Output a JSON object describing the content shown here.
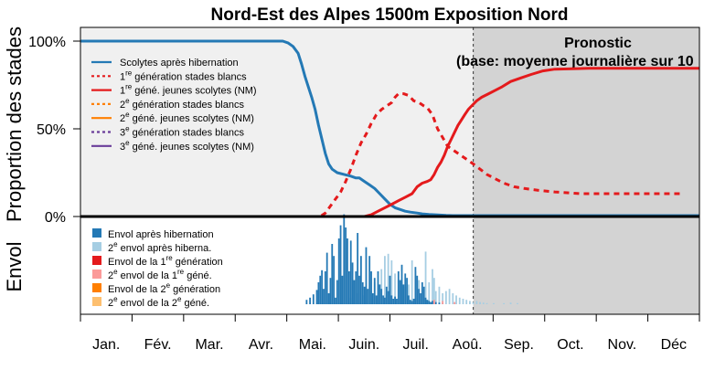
{
  "chart_data": {
    "type": "line",
    "title": "Nord-Est des Alpes 1500m Exposition Nord",
    "ylabel": "Proportion des stades",
    "ylabel_lower": "Envol",
    "yticks": [
      "100%",
      "50%",
      "0%"
    ],
    "ylim": [
      0,
      100
    ],
    "months": [
      "Jan.",
      "Fév.",
      "Mar.",
      "Avr.",
      "Mai.",
      "Juin.",
      "Juil.",
      "Aoû.",
      "Sep.",
      "Oct.",
      "Nov.",
      "Déc"
    ],
    "x_unit": "day of year",
    "xlim": [
      1,
      365
    ],
    "forecast": {
      "start_day": 232,
      "label_line1": "Pronostic",
      "label_line2": "(base: moyenne journalière sur 10"
    },
    "series": [
      {
        "name": "Scolytes après hibernation",
        "sup": "",
        "prefix": "",
        "suffix": "",
        "color": "#2479b5",
        "dash": "solid",
        "points": [
          [
            1,
            100
          ],
          [
            120,
            100
          ],
          [
            123,
            99
          ],
          [
            126,
            97
          ],
          [
            129,
            93
          ],
          [
            131,
            87
          ],
          [
            133,
            80
          ],
          [
            135,
            74
          ],
          [
            137,
            68
          ],
          [
            139,
            61
          ],
          [
            141,
            52
          ],
          [
            143,
            44
          ],
          [
            145,
            36
          ],
          [
            147,
            30
          ],
          [
            149,
            27
          ],
          [
            152,
            25
          ],
          [
            156,
            24
          ],
          [
            160,
            23
          ],
          [
            163,
            22
          ],
          [
            165,
            22
          ],
          [
            168,
            20
          ],
          [
            171,
            18
          ],
          [
            174,
            16
          ],
          [
            177,
            13
          ],
          [
            180,
            10
          ],
          [
            183,
            7
          ],
          [
            186,
            5
          ],
          [
            189,
            4
          ],
          [
            192,
            3
          ],
          [
            195,
            2.5
          ],
          [
            199,
            2
          ],
          [
            202,
            1.5
          ],
          [
            206,
            1.2
          ],
          [
            210,
            1
          ],
          [
            216,
            0.6
          ],
          [
            220,
            0.5
          ],
          [
            232,
            0.5
          ],
          [
            365,
            0.5
          ]
        ]
      },
      {
        "name": "génération stades blancs",
        "sup": "re",
        "prefix": "1",
        "suffix": "",
        "color": "#e41a1c",
        "dash": "dashed",
        "points": [
          [
            1,
            0
          ],
          [
            142,
            0
          ],
          [
            145,
            2
          ],
          [
            148,
            6
          ],
          [
            151,
            10
          ],
          [
            154,
            14
          ],
          [
            157,
            20
          ],
          [
            160,
            27
          ],
          [
            163,
            35
          ],
          [
            166,
            42
          ],
          [
            169,
            47
          ],
          [
            172,
            53
          ],
          [
            175,
            58
          ],
          [
            178,
            61
          ],
          [
            181,
            63
          ],
          [
            184,
            65
          ],
          [
            186,
            68
          ],
          [
            188,
            70
          ],
          [
            191,
            70
          ],
          [
            194,
            69
          ],
          [
            197,
            66
          ],
          [
            200,
            65
          ],
          [
            203,
            63
          ],
          [
            205,
            62
          ],
          [
            208,
            58
          ],
          [
            211,
            50
          ],
          [
            214,
            45
          ],
          [
            217,
            40
          ],
          [
            220,
            38
          ],
          [
            223,
            36
          ],
          [
            226,
            34
          ],
          [
            229,
            32
          ],
          [
            232,
            30
          ],
          [
            236,
            27
          ],
          [
            240,
            24
          ],
          [
            244,
            22
          ],
          [
            250,
            19
          ],
          [
            256,
            17
          ],
          [
            262,
            16
          ],
          [
            270,
            15
          ],
          [
            280,
            14
          ],
          [
            295,
            13
          ],
          [
            320,
            13
          ],
          [
            340,
            13
          ],
          [
            355,
            13
          ]
        ]
      },
      {
        "name": "géné. jeunes scolytes (NM)",
        "sup": "re",
        "prefix": "1",
        "suffix": "",
        "color": "#e41a1c",
        "dash": "solid",
        "points": [
          [
            1,
            0
          ],
          [
            168,
            0
          ],
          [
            172,
            1
          ],
          [
            176,
            3
          ],
          [
            180,
            5
          ],
          [
            184,
            7
          ],
          [
            188,
            9
          ],
          [
            192,
            11
          ],
          [
            196,
            13
          ],
          [
            199,
            17
          ],
          [
            202,
            19
          ],
          [
            205,
            20
          ],
          [
            207,
            21
          ],
          [
            209,
            24
          ],
          [
            211,
            28
          ],
          [
            213,
            31
          ],
          [
            215,
            35
          ],
          [
            217,
            40
          ],
          [
            219,
            44
          ],
          [
            221,
            48
          ],
          [
            223,
            52
          ],
          [
            225,
            55
          ],
          [
            227,
            58
          ],
          [
            229,
            61
          ],
          [
            231,
            63
          ],
          [
            234,
            66
          ],
          [
            237,
            68
          ],
          [
            241,
            70
          ],
          [
            245,
            72
          ],
          [
            249,
            74
          ],
          [
            254,
            77
          ],
          [
            260,
            79
          ],
          [
            266,
            81
          ],
          [
            273,
            83
          ],
          [
            280,
            84
          ],
          [
            300,
            84.5
          ],
          [
            340,
            84.5
          ],
          [
            365,
            84.5
          ]
        ]
      },
      {
        "name": "génération stades blancs",
        "sup": "e",
        "prefix": "2",
        "suffix": "",
        "color": "#ff7f00",
        "dash": "dashed",
        "points": [
          [
            1,
            0
          ],
          [
            365,
            0
          ]
        ]
      },
      {
        "name": "géné. jeunes scolytes (NM)",
        "sup": "e",
        "prefix": "2",
        "suffix": "",
        "color": "#ff7f00",
        "dash": "solid",
        "points": [
          [
            1,
            0
          ],
          [
            365,
            0
          ]
        ]
      },
      {
        "name": "génération stades blancs",
        "sup": "e",
        "prefix": "3",
        "suffix": "",
        "color": "#6a3d9a",
        "dash": "dashed",
        "points": [
          [
            1,
            0
          ],
          [
            365,
            0
          ]
        ]
      },
      {
        "name": "géné. jeunes scolytes (NM)",
        "sup": "e",
        "prefix": "3",
        "suffix": "",
        "color": "#6a3d9a",
        "dash": "solid",
        "points": [
          [
            1,
            0
          ],
          [
            365,
            0
          ]
        ]
      }
    ],
    "flight_legend": [
      {
        "prefix": "",
        "sup": "",
        "name": "Envol après hibernation",
        "color": "#2479b5"
      },
      {
        "prefix": "2",
        "sup": "e",
        "name": "envol après hiberna.",
        "color": "#a6cee3"
      },
      {
        "prefix": "",
        "sup": "re",
        "name": "Envol de la 1",
        "name_after": "génération",
        "color": "#e41a1c"
      },
      {
        "prefix": "2",
        "sup": "e",
        "name": "envol de la 1",
        "sup2": "re",
        "name_after": "géné.",
        "color": "#fb9a99"
      },
      {
        "prefix": "",
        "sup": "e",
        "name": "Envol de la 2",
        "name_after": "génération",
        "color": "#ff7f00"
      },
      {
        "prefix": "2",
        "sup": "e",
        "name": "envol de la 2",
        "sup2": "e",
        "name_after": "géné.",
        "color": "#fdbf6f"
      }
    ],
    "flight_blue": [
      [
        134,
        4
      ],
      [
        136,
        6
      ],
      [
        138,
        9
      ],
      [
        140,
        13
      ],
      [
        141,
        20
      ],
      [
        142,
        26
      ],
      [
        143,
        31
      ],
      [
        144,
        14
      ],
      [
        145,
        30
      ],
      [
        146,
        47
      ],
      [
        147,
        10
      ],
      [
        148,
        24
      ],
      [
        149,
        55
      ],
      [
        150,
        44
      ],
      [
        151,
        6
      ],
      [
        152,
        22
      ],
      [
        153,
        60
      ],
      [
        154,
        72
      ],
      [
        155,
        26
      ],
      [
        156,
        82
      ],
      [
        157,
        70
      ],
      [
        158,
        60
      ],
      [
        159,
        30
      ],
      [
        160,
        58
      ],
      [
        161,
        38
      ],
      [
        162,
        22
      ],
      [
        163,
        30
      ],
      [
        164,
        65
      ],
      [
        165,
        26
      ],
      [
        166,
        44
      ],
      [
        167,
        20
      ],
      [
        168,
        16
      ],
      [
        169,
        52
      ],
      [
        170,
        14
      ],
      [
        171,
        44
      ],
      [
        172,
        30
      ],
      [
        173,
        10
      ],
      [
        174,
        24
      ],
      [
        175,
        8
      ],
      [
        176,
        30
      ],
      [
        177,
        18
      ],
      [
        178,
        14
      ],
      [
        179,
        8
      ],
      [
        180,
        6
      ],
      [
        181,
        16
      ],
      [
        182,
        12
      ],
      [
        183,
        26
      ],
      [
        184,
        8
      ],
      [
        185,
        5
      ],
      [
        186,
        7
      ],
      [
        187,
        5
      ],
      [
        188,
        30
      ],
      [
        189,
        22
      ],
      [
        190,
        36
      ],
      [
        191,
        18
      ],
      [
        192,
        28
      ],
      [
        193,
        24
      ],
      [
        194,
        8
      ],
      [
        195,
        4
      ],
      [
        196,
        3
      ],
      [
        197,
        5
      ],
      [
        198,
        34
      ],
      [
        199,
        26
      ],
      [
        200,
        14
      ],
      [
        201,
        10
      ],
      [
        202,
        20
      ],
      [
        203,
        16
      ],
      [
        204,
        6
      ],
      [
        205,
        4
      ],
      [
        206,
        3
      ],
      [
        207,
        2
      ],
      [
        208,
        3
      ],
      [
        210,
        2
      ],
      [
        212,
        1.5
      ],
      [
        214,
        1
      ]
    ],
    "flight_lightblue": [
      [
        160,
        6
      ],
      [
        164,
        10
      ],
      [
        168,
        8
      ],
      [
        172,
        12
      ],
      [
        174,
        20
      ],
      [
        178,
        32
      ],
      [
        180,
        44
      ],
      [
        182,
        46
      ],
      [
        184,
        40
      ],
      [
        186,
        28
      ],
      [
        188,
        22
      ],
      [
        190,
        20
      ],
      [
        192,
        16
      ],
      [
        194,
        18
      ],
      [
        196,
        40
      ],
      [
        198,
        30
      ],
      [
        200,
        22
      ],
      [
        202,
        14
      ],
      [
        204,
        48
      ],
      [
        206,
        20
      ],
      [
        208,
        32
      ],
      [
        209,
        24
      ],
      [
        210,
        12
      ],
      [
        212,
        16
      ],
      [
        214,
        10
      ],
      [
        216,
        12
      ],
      [
        218,
        14
      ],
      [
        220,
        10
      ],
      [
        222,
        8
      ],
      [
        224,
        6
      ],
      [
        226,
        5
      ],
      [
        228,
        4
      ],
      [
        230,
        3
      ],
      [
        232,
        2
      ],
      [
        234,
        3
      ],
      [
        236,
        2
      ],
      [
        238,
        1.5
      ],
      [
        240,
        1
      ],
      [
        244,
        1
      ],
      [
        250,
        1
      ],
      [
        254,
        1.5
      ],
      [
        258,
        1
      ]
    ],
    "flight_pink": [
      [
        209,
        4
      ],
      [
        214,
        3
      ],
      [
        221,
        2
      ]
    ],
    "flight_ylim": [
      0,
      100
    ]
  }
}
